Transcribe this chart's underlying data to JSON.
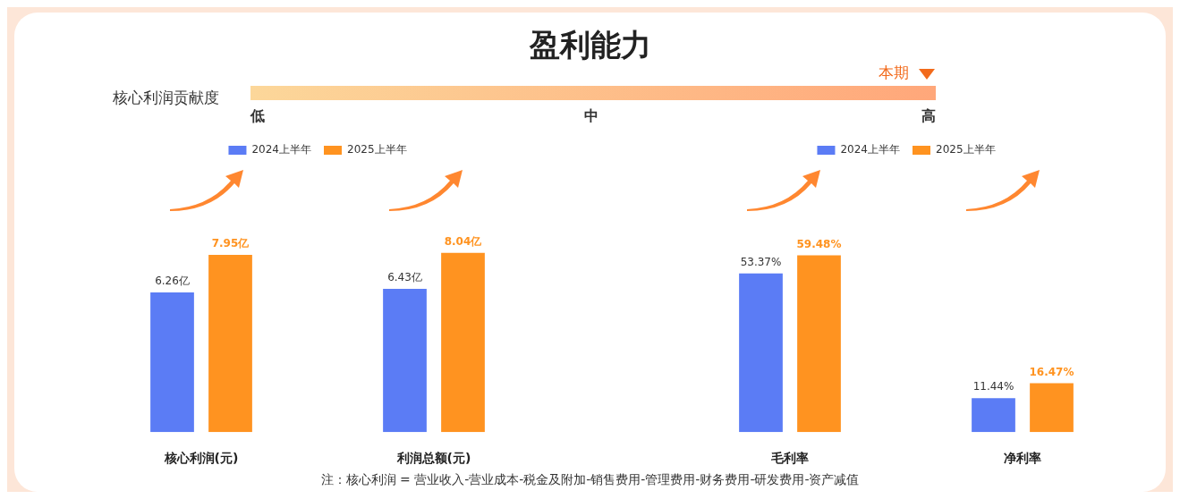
{
  "chart_data": [
    {
      "type": "other",
      "title": "盈利能力",
      "annotations": [
        "核心利润贡献度",
        "低",
        "中",
        "高",
        "本期",
        "注：核心利润 = 营业收入-营业成本-税金及附加-销售费用-管理费用-财务费用-研发费用-资产减值"
      ]
    },
    {
      "type": "bar",
      "categories": [
        "核心利润(元)",
        "利润总额(元)"
      ],
      "legend": "top",
      "series": [
        {
          "name": "2024上半年",
          "color": "#5b7cf5",
          "values": [
            6.26,
            6.43
          ],
          "value_labels": [
            "6.26亿",
            "6.43亿"
          ]
        },
        {
          "name": "2025上半年",
          "color": "#ff9320",
          "values": [
            7.95,
            8.04
          ],
          "value_labels": [
            "7.95亿",
            "8.04亿"
          ]
        }
      ]
    },
    {
      "type": "bar",
      "categories": [
        "毛利率",
        "净利率"
      ],
      "legend": "top",
      "series": [
        {
          "name": "2024上半年",
          "color": "#5b7cf5",
          "values": [
            53.37,
            11.44
          ],
          "value_labels": [
            "53.37%",
            "11.44%"
          ]
        },
        {
          "name": "2025上半年",
          "color": "#ff9320",
          "values": [
            59.48,
            16.47
          ],
          "value_labels": [
            "59.48%",
            "16.47%"
          ]
        }
      ]
    }
  ]
}
